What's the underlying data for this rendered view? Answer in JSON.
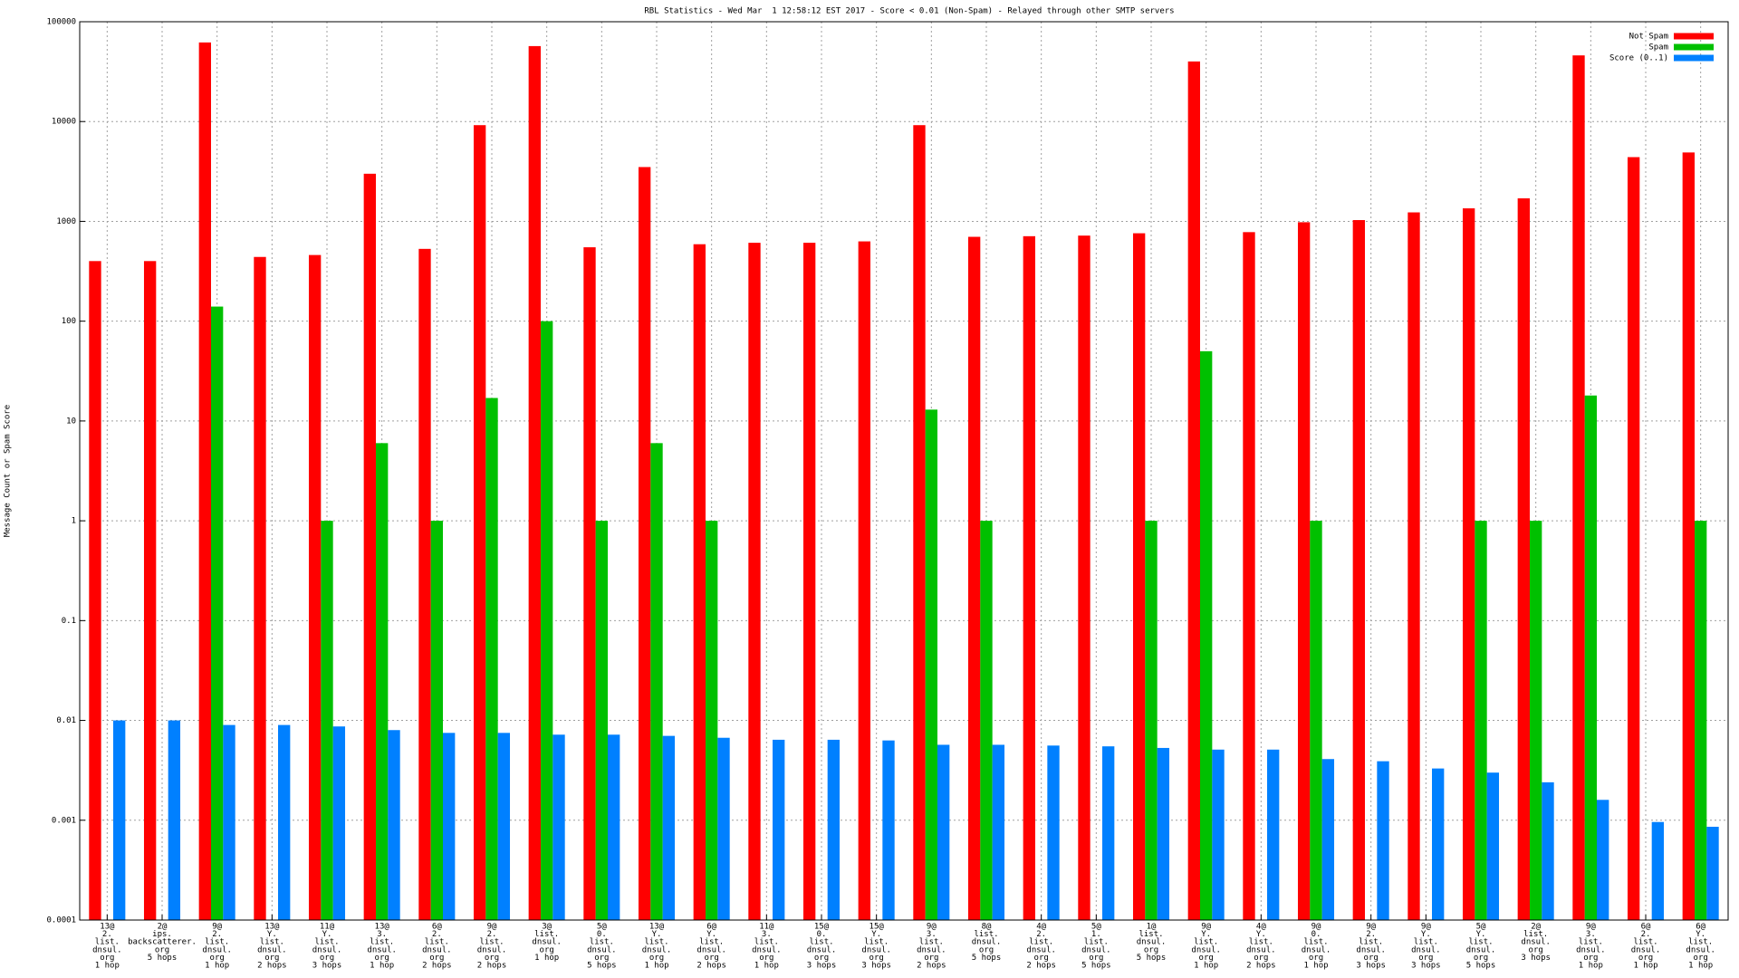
{
  "chart_data": {
    "type": "bar",
    "title": "RBL Statistics - Wed Mar  1 12:58:12 EST 2017 - Score < 0.01 (Non-Spam) - Relayed through other SMTP servers",
    "y_label": "Message Count or Spam Score",
    "log_scale": true,
    "grid": true,
    "legend": "top-right",
    "categories": [
      [
        "13@",
        "2.",
        "list.",
        "dnsul.",
        "org",
        "1 hop"
      ],
      [
        "2@",
        "ips.",
        "backscatterer.",
        "org",
        "5 hops"
      ],
      [
        "9@",
        "2.",
        "list.",
        "dnsul.",
        "org",
        "1 hop"
      ],
      [
        "13@",
        "Y.",
        "list.",
        "dnsul.",
        "org",
        "2 hops"
      ],
      [
        "11@",
        "Y.",
        "list.",
        "dnsul.",
        "org",
        "3 hops"
      ],
      [
        "13@",
        "3.",
        "list.",
        "dnsul.",
        "org",
        "1 hop"
      ],
      [
        "6@",
        "2.",
        "list.",
        "dnsul.",
        "org",
        "2 hops"
      ],
      [
        "9@",
        "2.",
        "list.",
        "dnsul.",
        "org",
        "2 hops"
      ],
      [
        "3@",
        "list.",
        "dnsul.",
        "org",
        "1 hop"
      ],
      [
        "5@",
        "0.",
        "list.",
        "dnsul.",
        "org",
        "5 hops"
      ],
      [
        "13@",
        "Y.",
        "list.",
        "dnsul.",
        "org",
        "1 hop"
      ],
      [
        "6@",
        "Y.",
        "list.",
        "dnsul.",
        "org",
        "2 hops"
      ],
      [
        "11@",
        "3.",
        "list.",
        "dnsul.",
        "org",
        "1 hop"
      ],
      [
        "15@",
        "0.",
        "list.",
        "dnsul.",
        "org",
        "3 hops"
      ],
      [
        "15@",
        "Y.",
        "list.",
        "dnsul.",
        "org",
        "3 hops"
      ],
      [
        "9@",
        "3.",
        "list.",
        "dnsul.",
        "org",
        "2 hops"
      ],
      [
        "8@",
        "list.",
        "dnsul.",
        "org",
        "5 hops"
      ],
      [
        "4@",
        "2.",
        "list.",
        "dnsul.",
        "org",
        "2 hops"
      ],
      [
        "5@",
        "1.",
        "list.",
        "dnsul.",
        "org",
        "5 hops"
      ],
      [
        "1@",
        "list.",
        "dnsul.",
        "org",
        "5 hops"
      ],
      [
        "9@",
        "Y.",
        "list.",
        "dnsul.",
        "org",
        "1 hop"
      ],
      [
        "4@",
        "Y.",
        "list.",
        "dnsul.",
        "org",
        "2 hops"
      ],
      [
        "9@",
        "0.",
        "list.",
        "dnsul.",
        "org",
        "1 hop"
      ],
      [
        "9@",
        "2.",
        "list.",
        "dnsul.",
        "org",
        "3 hops"
      ],
      [
        "9@",
        "Y.",
        "list.",
        "dnsul.",
        "org",
        "3 hops"
      ],
      [
        "5@",
        "Y.",
        "list.",
        "dnsul.",
        "org",
        "5 hops"
      ],
      [
        "2@",
        "list.",
        "dnsul.",
        "org",
        "3 hops"
      ],
      [
        "9@",
        "3.",
        "list.",
        "dnsul.",
        "org",
        "1 hop"
      ],
      [
        "6@",
        "2.",
        "list.",
        "dnsul.",
        "org",
        "1 hop"
      ],
      [
        "6@",
        "Y.",
        "list.",
        "dnsul.",
        "org",
        "1 hop"
      ]
    ],
    "series": [
      {
        "name": "Not Spam",
        "color": "#ff0000",
        "values": [
          400,
          400,
          62000,
          440,
          460,
          3000,
          530,
          9200,
          57000,
          550,
          3500,
          590,
          610,
          610,
          630,
          9200,
          700,
          710,
          720,
          760,
          40000,
          780,
          980,
          1030,
          1230,
          1350,
          1700,
          46000,
          4400,
          4900
        ]
      },
      {
        "name": "Spam",
        "color": "#00c000",
        "values": [
          null,
          null,
          140,
          null,
          1,
          6,
          1,
          17,
          100,
          1,
          6,
          1,
          null,
          null,
          null,
          13,
          1,
          null,
          null,
          1,
          50,
          null,
          1,
          null,
          null,
          1,
          1,
          18,
          null,
          1
        ]
      },
      {
        "name": "Score (0..1)",
        "color": "#0080ff",
        "values": [
          0.01,
          0.01,
          0.009,
          0.009,
          0.0087,
          0.008,
          0.0075,
          0.0075,
          0.0072,
          0.0072,
          0.007,
          0.0067,
          0.0064,
          0.0064,
          0.0063,
          0.0057,
          0.0057,
          0.0056,
          0.0055,
          0.0053,
          0.0051,
          0.0051,
          0.0041,
          0.0039,
          0.0033,
          0.003,
          0.0024,
          0.0016,
          0.00096,
          0.00086
        ]
      }
    ],
    "ylim": [
      0.0001,
      100000
    ],
    "yticks": [
      0.0001,
      0.001,
      0.01,
      0.1,
      1,
      10,
      100,
      1000,
      10000,
      100000
    ]
  }
}
